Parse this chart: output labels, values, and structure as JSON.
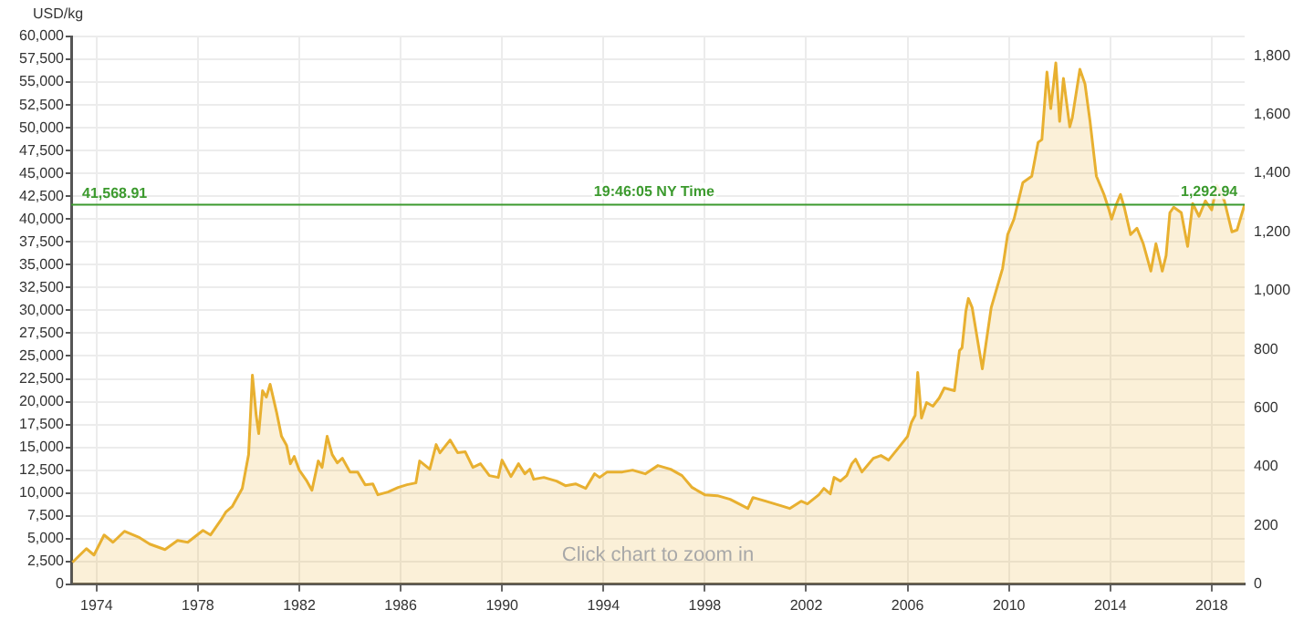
{
  "chart_data": {
    "type": "area",
    "ylabel": "USD/kg",
    "x": [
      1973.05,
      1973.6,
      1973.9,
      1974.3,
      1974.65,
      1975.1,
      1975.7,
      1976.1,
      1976.7,
      1977.2,
      1977.6,
      1978.2,
      1978.5,
      1978.9,
      1979.1,
      1979.35,
      1979.75,
      1980.0,
      1980.15,
      1980.3,
      1980.4,
      1980.55,
      1980.7,
      1980.85,
      1981.1,
      1981.3,
      1981.5,
      1981.65,
      1981.8,
      1982.0,
      1982.3,
      1982.5,
      1982.75,
      1982.9,
      1983.1,
      1983.3,
      1983.5,
      1983.7,
      1984.0,
      1984.3,
      1984.6,
      1984.9,
      1985.1,
      1985.5,
      1985.9,
      1986.25,
      1986.6,
      1986.75,
      1987.15,
      1987.4,
      1987.55,
      1987.95,
      1988.25,
      1988.55,
      1988.85,
      1989.15,
      1989.5,
      1989.85,
      1990.0,
      1990.35,
      1990.65,
      1990.9,
      1991.1,
      1991.25,
      1991.65,
      1992.15,
      1992.5,
      1992.9,
      1993.3,
      1993.65,
      1993.85,
      1994.15,
      1994.75,
      1995.15,
      1995.65,
      1996.15,
      1996.65,
      1997.1,
      1997.5,
      1998.0,
      1998.5,
      1999.0,
      1999.7,
      1999.9,
      2000.4,
      2001.0,
      2001.35,
      2001.8,
      2002.05,
      2002.5,
      2002.7,
      2002.95,
      2003.1,
      2003.35,
      2003.6,
      2003.8,
      2003.95,
      2004.2,
      2004.65,
      2004.95,
      2005.25,
      2005.6,
      2006.0,
      2006.15,
      2006.3,
      2006.4,
      2006.55,
      2006.75,
      2007.0,
      2007.25,
      2007.45,
      2007.85,
      2008.05,
      2008.15,
      2008.3,
      2008.4,
      2008.55,
      2008.95,
      2009.3,
      2009.75,
      2009.95,
      2010.2,
      2010.55,
      2010.9,
      2011.15,
      2011.3,
      2011.5,
      2011.65,
      2011.85,
      2012.0,
      2012.15,
      2012.4,
      2012.5,
      2012.8,
      2013.0,
      2013.2,
      2013.45,
      2013.75,
      2013.95,
      2014.05,
      2014.25,
      2014.4,
      2014.55,
      2014.8,
      2015.05,
      2015.3,
      2015.6,
      2015.8,
      2016.05,
      2016.2,
      2016.35,
      2016.5,
      2016.8,
      2017.05,
      2017.25,
      2017.5,
      2017.75,
      2018.0,
      2018.2,
      2018.5,
      2018.8,
      2019.0,
      2019.3
    ],
    "values": [
      2400,
      3900,
      3200,
      5400,
      4600,
      5800,
      5100,
      4400,
      3800,
      4800,
      4600,
      5900,
      5400,
      7000,
      7900,
      8500,
      10500,
      14200,
      22900,
      18500,
      16500,
      21200,
      20500,
      21900,
      18900,
      16200,
      15200,
      13200,
      14000,
      12500,
      11300,
      10300,
      13500,
      12800,
      16200,
      14200,
      13300,
      13800,
      12300,
      12300,
      10900,
      11000,
      9800,
      10100,
      10600,
      10900,
      11100,
      13500,
      12600,
      15300,
      14400,
      15800,
      14400,
      14500,
      12800,
      13200,
      11900,
      11700,
      13600,
      11800,
      13200,
      12100,
      12600,
      11500,
      11700,
      11300,
      10800,
      11000,
      10500,
      12100,
      11700,
      12300,
      12300,
      12500,
      12100,
      13000,
      12600,
      11900,
      10600,
      9800,
      9700,
      9300,
      8300,
      9500,
      9100,
      8600,
      8300,
      9100,
      8800,
      9800,
      10500,
      9900,
      11700,
      11300,
      11900,
      13200,
      13700,
      12300,
      13800,
      14100,
      13600,
      14800,
      16200,
      17700,
      18500,
      23200,
      18200,
      19900,
      19500,
      20400,
      21500,
      21200,
      25600,
      25900,
      29900,
      31300,
      30300,
      23600,
      30300,
      34600,
      38300,
      40000,
      44000,
      44700,
      48400,
      48700,
      56100,
      52100,
      57100,
      50700,
      55400,
      50100,
      51100,
      56400,
      54800,
      50700,
      44700,
      42700,
      41000,
      40000,
      41700,
      42700,
      41300,
      38300,
      39000,
      37300,
      34300,
      37300,
      34300,
      36000,
      40700,
      41300,
      40700,
      37000,
      41700,
      40300,
      42000,
      41000,
      43700,
      42000,
      38600,
      38800,
      41600
    ],
    "color": "#e8b030",
    "xlim": [
      1973,
      2019.3
    ],
    "xticks": [
      1974,
      1978,
      1982,
      1986,
      1990,
      1994,
      1998,
      2002,
      2006,
      2010,
      2014,
      2018
    ],
    "ylim": [
      0,
      60000
    ],
    "yticks": [
      {
        "value": 0,
        "label": "0"
      },
      {
        "value": 2500,
        "label": "2,500"
      },
      {
        "value": 5000,
        "label": "5,000"
      },
      {
        "value": 7500,
        "label": "7,500"
      },
      {
        "value": 10000,
        "label": "10,000"
      },
      {
        "value": 12500,
        "label": "12,500"
      },
      {
        "value": 15000,
        "label": "15,000"
      },
      {
        "value": 17500,
        "label": "17,500"
      },
      {
        "value": 20000,
        "label": "20,000"
      },
      {
        "value": 22500,
        "label": "22,500"
      },
      {
        "value": 25000,
        "label": "25,000"
      },
      {
        "value": 27500,
        "label": "27,500"
      },
      {
        "value": 30000,
        "label": "30,000"
      },
      {
        "value": 32500,
        "label": "32,500"
      },
      {
        "value": 35000,
        "label": "35,000"
      },
      {
        "value": 37500,
        "label": "37,500"
      },
      {
        "value": 40000,
        "label": "40,000"
      },
      {
        "value": 42500,
        "label": "42,500"
      },
      {
        "value": 45000,
        "label": "45,000"
      },
      {
        "value": 47500,
        "label": "47,500"
      },
      {
        "value": 50000,
        "label": "50,000"
      },
      {
        "value": 52500,
        "label": "52,500"
      },
      {
        "value": 55000,
        "label": "55,000"
      },
      {
        "value": 57500,
        "label": "57,500"
      },
      {
        "value": 60000,
        "label": "60,000"
      }
    ],
    "y2lim": [
      0,
      1866
    ],
    "y2ticks": [
      0,
      200,
      400,
      600,
      800,
      {
        "value": 1000,
        "label": "1,000"
      },
      {
        "value": 1200,
        "label": "1,200"
      },
      {
        "value": 1400,
        "label": "1,400"
      },
      {
        "value": 1600,
        "label": "1,600"
      },
      {
        "value": 1800,
        "label": "1,800"
      }
    ],
    "ref_lines": [
      {
        "axis": "y",
        "value": 41568.91,
        "label": "41,568.91",
        "color": "#3c9a2e"
      }
    ],
    "annotations": [
      {
        "text": "19:46:05 NY Time",
        "x": 1996,
        "y": 41568.91
      },
      {
        "text": "1,292.94",
        "x": 2017.9,
        "y": 41568.91
      },
      "Click chart to zoom in"
    ],
    "grid": true,
    "legend": false,
    "marker": "none",
    "line_style": "solid"
  }
}
